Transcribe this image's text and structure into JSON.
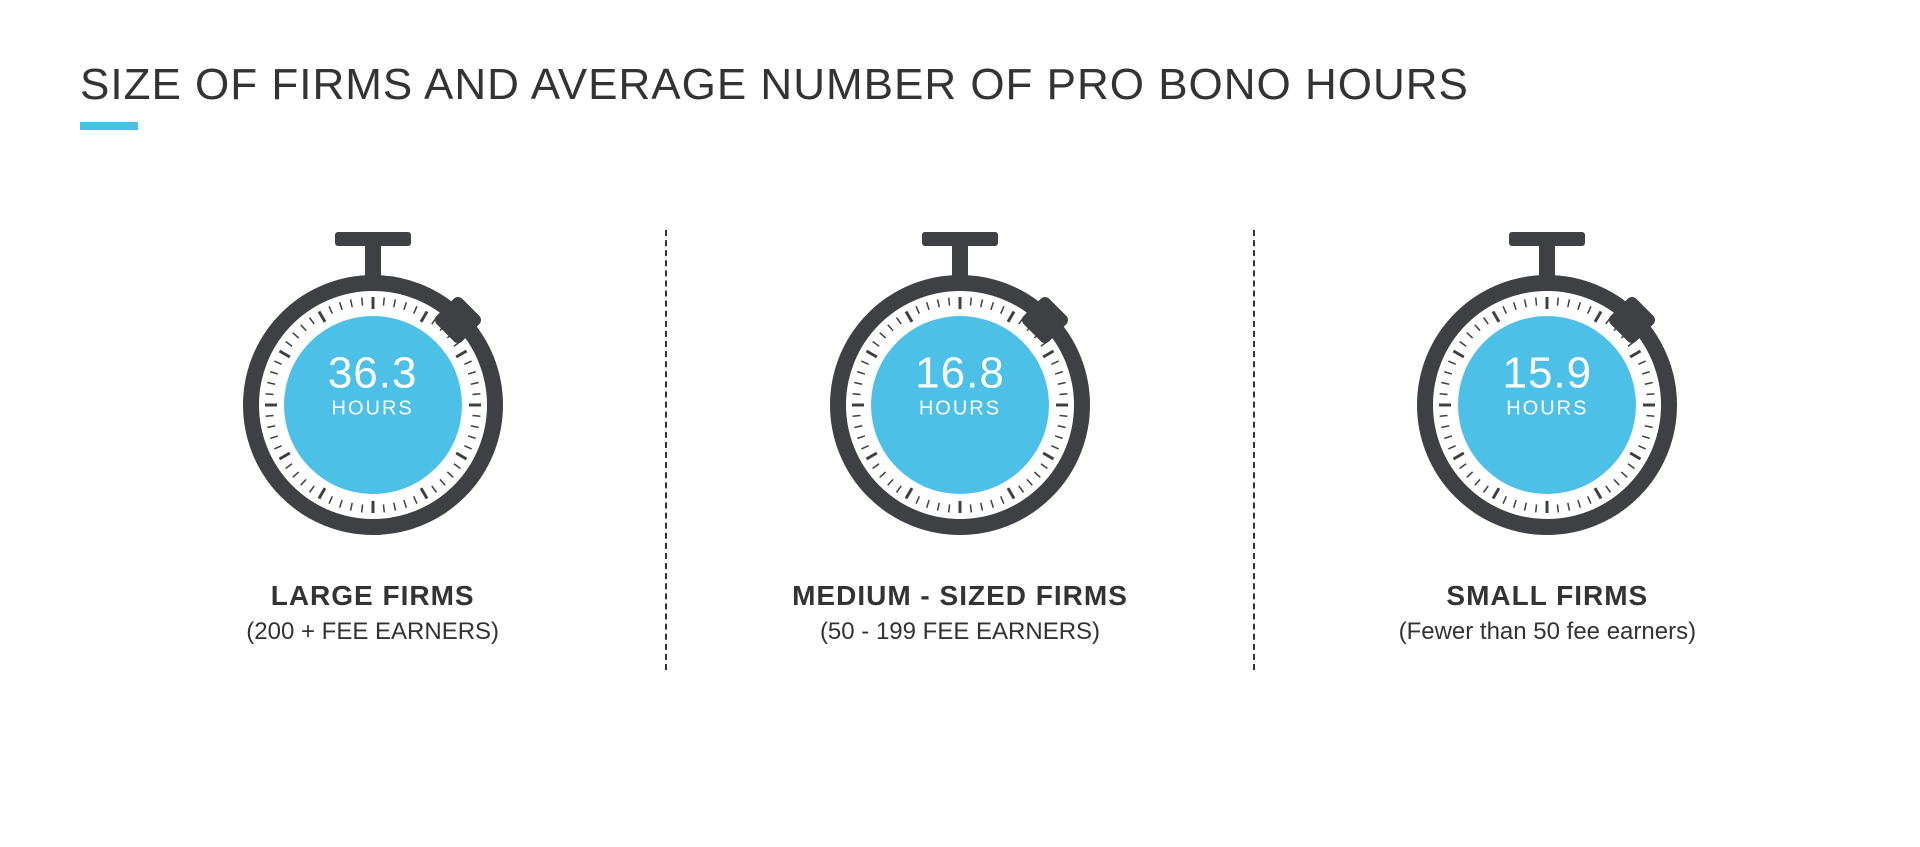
{
  "title": "SIZE OF FIRMS AND AVERAGE NUMBER OF PRO BONO HOURS",
  "accent_color": "#4dc0e8",
  "icon_color": "#3f4044",
  "text_color": "#333333",
  "background_color": "#ffffff",
  "divider_color": "#333333",
  "unit_label": "HOURS",
  "items": [
    {
      "value": "36.3",
      "label": "LARGE FIRMS",
      "sublabel": "(200 + FEE EARNERS)"
    },
    {
      "value": "16.8",
      "label": "MEDIUM - SIZED FIRMS",
      "sublabel": "(50 - 199 FEE EARNERS)"
    },
    {
      "value": "15.9",
      "label": "SMALL FIRMS",
      "sublabel": "(Fewer than 50 fee earners)"
    }
  ],
  "stopwatch": {
    "outer_ring_width": 16,
    "face_radius": 95,
    "tick_count": 60,
    "tick_color": "#3f4044"
  }
}
